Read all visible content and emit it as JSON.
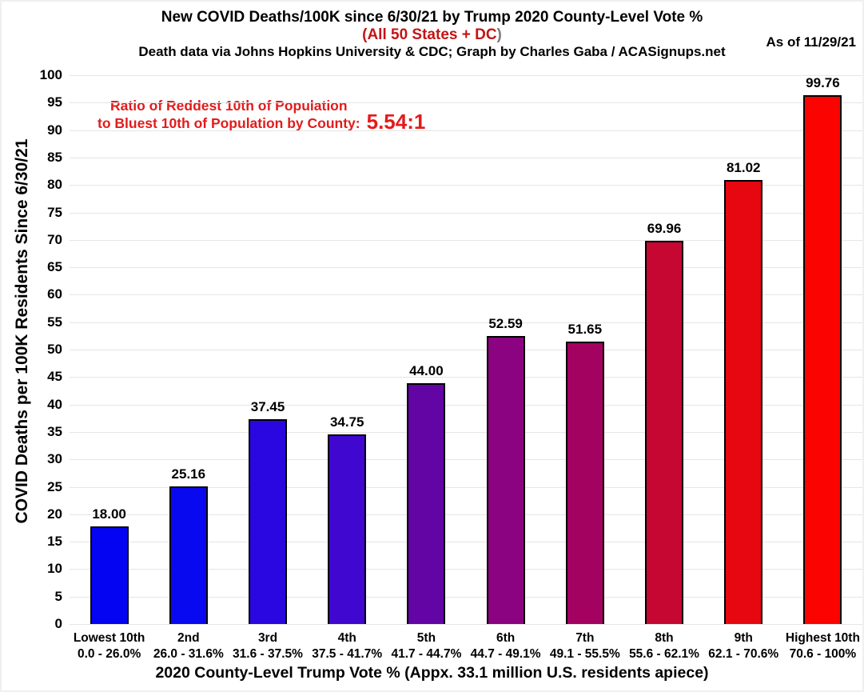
{
  "header": {
    "title": "New COVID Deaths/100K since 6/30/21 by Trump 2020 County-Level Vote %",
    "subtitle_red": "(All 50 States + DC",
    "subtitle_close": ")",
    "credit": "Death data via Johns Hopkins University & CDC; Graph by Charles Gaba / ACASignups.net",
    "as_of": "As of 11/29/21"
  },
  "annotation": {
    "line1": "Ratio of Reddest 10th of Population",
    "line2": "to Bluest 10th of Population by County:",
    "ratio": "5.54:1",
    "color": "#e31b1b"
  },
  "chart_data": {
    "type": "bar",
    "title": "New COVID Deaths/100K since 6/30/21 by Trump 2020 County-Level Vote %",
    "subtitle": "(All 50 States + DC)",
    "credit": "Death data via Johns Hopkins University & CDC; Graph by Charles Gaba / ACASignups.net",
    "as_of": "As of 11/29/21",
    "categories": [
      "Lowest 10th",
      "2nd",
      "3rd",
      "4th",
      "5th",
      "6th",
      "7th",
      "8th",
      "9th",
      "Highest 10th"
    ],
    "category_ranges": [
      "0.0 - 26.0%",
      "26.0 - 31.6%",
      "31.6 - 37.5%",
      "37.5 - 41.7%",
      "41.7 - 44.7%",
      "44.7 - 49.1%",
      "49.1 - 55.5%",
      "55.6 - 62.1%",
      "62.1 - 70.6%",
      "70.6 - 100%"
    ],
    "values": [
      18.0,
      25.16,
      37.45,
      34.75,
      44.0,
      52.59,
      51.65,
      69.96,
      81.02,
      99.76
    ],
    "bar_colors": [
      "#0404f2",
      "#0909f0",
      "#2a07e0",
      "#3f07cf",
      "#6304a5",
      "#8b0380",
      "#a40260",
      "#c50732",
      "#e70711",
      "#fb0300"
    ],
    "xlabel": "2020 County-Level Trump Vote % (Appx. 33.1 million U.S. residents apiece)",
    "ylabel": "COVID Deaths per 100K Residents Since 6/30/21",
    "ylim": [
      0,
      100
    ],
    "ytick_step": 5,
    "grid": true,
    "legend": null,
    "ratio_annotation": "Ratio of Reddest 10th of Population to Bluest 10th of Population by County: 5.54:1"
  }
}
